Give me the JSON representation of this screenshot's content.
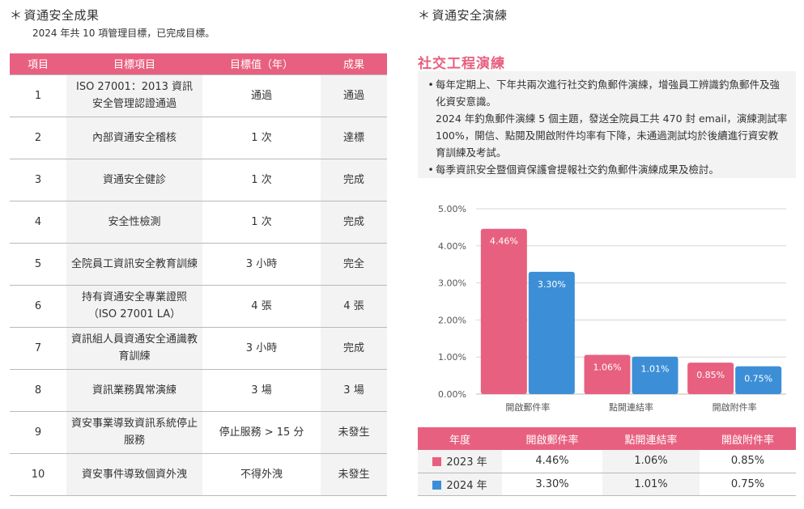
{
  "left": {
    "title": "資通安全成果",
    "subtitle": "2024 年共 10 項管理目標，已完成目標。",
    "headers": [
      "項目",
      "目標項目",
      "目標值（年）",
      "成果"
    ],
    "rows": [
      {
        "no": "1",
        "item": "ISO 27001：2013 資訊安全管理認證通過",
        "target": "通過",
        "result": "通過"
      },
      {
        "no": "2",
        "item": "內部資通安全稽核",
        "target": "1 次",
        "result": "達標"
      },
      {
        "no": "3",
        "item": "資通安全健診",
        "target": "1 次",
        "result": "完成"
      },
      {
        "no": "4",
        "item": "安全性檢測",
        "target": "1 次",
        "result": "完成"
      },
      {
        "no": "5",
        "item": "全院員工資訊安全教育訓練",
        "target": "3 小時",
        "result": "完全"
      },
      {
        "no": "6",
        "item": "持有資通安全專業證照（ISO 27001 LA）",
        "target": "4 張",
        "result": "4 張"
      },
      {
        "no": "7",
        "item": "資訊組人員資通安全通識教育訓練",
        "target": "3 小時",
        "result": "完成"
      },
      {
        "no": "8",
        "item": "資訊業務異常演練",
        "target": "3 場",
        "result": "3 場"
      },
      {
        "no": "9",
        "item": "資安事業導致資訊系統停止服務",
        "target": "停止服務 > 15 分",
        "result": "未發生"
      },
      {
        "no": "10",
        "item": "資安事件導致個資外洩",
        "target": "不得外洩",
        "result": "未發生"
      }
    ]
  },
  "right": {
    "title": "資通安全演練",
    "section_title": "社交工程演練",
    "bullets": [
      "每年定期上、下年共兩次進行社交釣魚郵件演練，增強員工辨識釣魚郵件及強化資安意識。",
      "每季資訊安全暨個資保護會提報社交釣魚郵件演練成果及檢討。"
    ],
    "bullet_detail": "2024 年釣魚郵件演練 5 個主題，發送全院員工共 470 封 email，演練測試率 100%，開信、點閱及開啟附件均率有下降，未通過測試均於後續進行資安教育訓練及考試。",
    "table_headers": [
      "年度",
      "開啟郵件率",
      "點開連結率",
      "開啟附件率"
    ],
    "table_rows": [
      {
        "year": "2023 年",
        "open": "4.46%",
        "click": "1.06%",
        "attach": "0.85%",
        "color": "#e8607f"
      },
      {
        "year": "2024 年",
        "open": "3.30%",
        "click": "1.01%",
        "attach": "0.75%",
        "color": "#3c8fd6"
      }
    ]
  },
  "chart_data": {
    "type": "bar",
    "categories": [
      "開啟郵件率",
      "點開連結率",
      "開啟附件率"
    ],
    "series": [
      {
        "name": "2023 年",
        "values": [
          4.46,
          1.06,
          0.85
        ],
        "color": "#e8607f"
      },
      {
        "name": "2024 年",
        "values": [
          3.3,
          1.01,
          0.75
        ],
        "color": "#3c8fd6"
      }
    ],
    "y_ticks": [
      "0.00%",
      "1.00%",
      "2.00%",
      "3.00%",
      "4.00%",
      "5.00%"
    ],
    "ylim": [
      0,
      5
    ],
    "grid": true
  }
}
